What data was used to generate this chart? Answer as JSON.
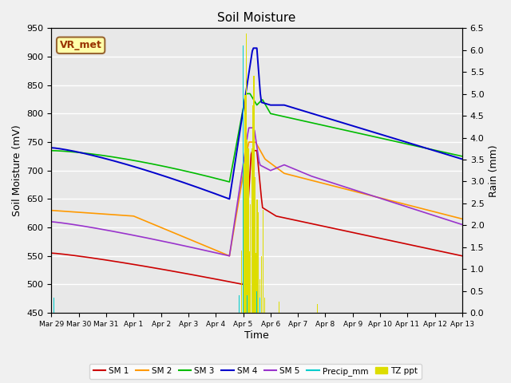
{
  "title": "Soil Moisture",
  "ylabel_left": "Soil Moisture (mV)",
  "ylabel_right": "Rain (mm)",
  "xlabel": "Time",
  "ylim_left": [
    450,
    950
  ],
  "ylim_right": [
    0.0,
    6.5
  ],
  "yticks_left": [
    450,
    500,
    550,
    600,
    650,
    700,
    750,
    800,
    850,
    900,
    950
  ],
  "yticks_right": [
    0.0,
    0.5,
    1.0,
    1.5,
    2.0,
    2.5,
    3.0,
    3.5,
    4.0,
    4.5,
    5.0,
    5.5,
    6.0,
    6.5
  ],
  "background_color": "#e8e8e8",
  "fig_background": "#f0f0f0",
  "grid_color": "#ffffff",
  "colors": {
    "SM1": "#cc0000",
    "SM2": "#ff9900",
    "SM3": "#00bb00",
    "SM4": "#0000cc",
    "SM5": "#9933cc",
    "Precip": "#00cccc",
    "TZ": "#dddd00"
  },
  "annotation_box": {
    "text": "VR_met",
    "fontsize": 9,
    "facecolor": "#ffffaa",
    "edgecolor": "#996633",
    "textcolor": "#993300"
  },
  "tick_labels": [
    "Mar 29",
    "Mar 30",
    "Mar 31",
    "Apr 1",
    "Apr 2",
    "Apr 3",
    "Apr 4",
    "Apr 5",
    "Apr 6",
    "Apr 7",
    "Apr 8",
    "Apr 9",
    "Apr 10",
    "Apr 11",
    "Apr 12",
    "Apr 13"
  ],
  "legend_labels": [
    "SM 1",
    "SM 2",
    "SM 3",
    "SM 4",
    "SM 5",
    "Precip_mm",
    "TZ ppt"
  ]
}
